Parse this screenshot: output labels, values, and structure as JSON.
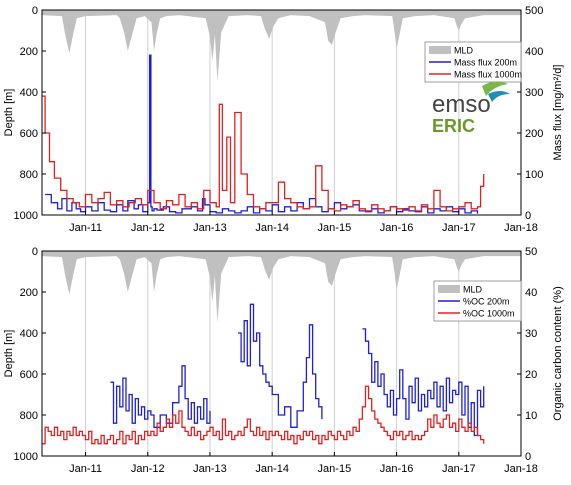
{
  "colors": {
    "mld": "#c0c0c0",
    "blue": "#1f1fdc",
    "red": "#e32020",
    "grid": "#cfcfcf",
    "axis": "#000000"
  },
  "chart_data": [
    {
      "type": "line",
      "ylabel_left": "Depth [m]",
      "ylabel_right": "Mass flux [mg/m²/d]",
      "ylim_left": [
        0,
        1000
      ],
      "ylim_left_reversed": true,
      "ylim_right": [
        0,
        500
      ],
      "yticks_left": [
        "0",
        "200",
        "400",
        "600",
        "800",
        "1000"
      ],
      "yticks_right": [
        "0",
        "100",
        "200",
        "300",
        "400",
        "500"
      ],
      "xlim": [
        2010.3,
        2018.0
      ],
      "xticks": [
        "Jan-11",
        "Jan-12",
        "Jan-13",
        "Jan-14",
        "Jan-15",
        "Jan-16",
        "Jan-17",
        "Jan-18"
      ],
      "legend": [
        "MLD",
        "Mass flux 200m",
        "Mass flux 1000m"
      ],
      "legend_position": "upper-right",
      "series": [
        {
          "name": "MLD",
          "axis": "left",
          "style": "filled-area",
          "x": [
            2010.3,
            2010.62,
            2010.68,
            2010.74,
            2010.8,
            2010.86,
            2011.0,
            2011.5,
            2011.55,
            2011.62,
            2011.68,
            2011.74,
            2011.82,
            2011.95,
            2012.06,
            2012.1,
            2012.14,
            2012.2,
            2012.3,
            2012.5,
            2012.93,
            2013.0,
            2013.04,
            2013.08,
            2013.12,
            2013.18,
            2013.3,
            2013.6,
            2013.82,
            2013.88,
            2013.95,
            2014.02,
            2014.1,
            2014.3,
            2014.6,
            2014.85,
            2014.9,
            2014.96,
            2015.02,
            2015.1,
            2015.3,
            2015.5,
            2015.93,
            2015.97,
            2016.0,
            2016.04,
            2016.1,
            2016.3,
            2016.6,
            2016.93,
            2016.97,
            2017.0,
            2017.04,
            2017.1,
            2017.4,
            2018.0
          ],
          "y": [
            25,
            30,
            130,
            210,
            120,
            40,
            30,
            25,
            40,
            110,
            200,
            130,
            40,
            30,
            60,
            200,
            120,
            40,
            30,
            25,
            40,
            130,
            250,
            120,
            350,
            110,
            30,
            25,
            30,
            90,
            140,
            80,
            40,
            25,
            30,
            60,
            150,
            170,
            110,
            40,
            30,
            25,
            30,
            110,
            190,
            130,
            40,
            30,
            25,
            40,
            80,
            100,
            70,
            40,
            25,
            25
          ]
        },
        {
          "name": "Mass flux 200m",
          "axis": "right",
          "color": "#1f1fdc",
          "x": [
            2010.35,
            2010.45,
            2010.55,
            2010.62,
            2010.7,
            2010.78,
            2010.85,
            2010.92,
            2011.0,
            2011.1,
            2011.2,
            2011.3,
            2011.4,
            2011.5,
            2011.6,
            2011.68,
            2011.78,
            2011.85,
            2011.92,
            2012.0,
            2012.03,
            2012.05,
            2012.07,
            2012.1,
            2012.15,
            2012.25,
            2012.35,
            2012.45,
            2012.55,
            2012.7,
            2012.8,
            2012.88,
            2012.92,
            2013.0,
            2013.1,
            2013.2,
            2013.3,
            2013.4,
            2013.5,
            2013.6,
            2013.7,
            2013.8,
            2013.9,
            2014.0,
            2014.1,
            2014.2,
            2014.3,
            2014.4,
            2014.5,
            2014.6,
            2014.7,
            2014.8,
            2014.9,
            2015.0,
            2015.1,
            2015.2,
            2015.3,
            2015.4,
            2015.5,
            2015.6,
            2015.7,
            2015.8,
            2015.9,
            2016.0,
            2016.1,
            2016.2,
            2016.3,
            2016.4,
            2016.5,
            2016.6,
            2016.7,
            2016.8,
            2016.9,
            2017.0,
            2017.1,
            2017.2,
            2017.3
          ],
          "y": [
            50,
            30,
            15,
            40,
            10,
            30,
            15,
            8,
            20,
            10,
            30,
            12,
            8,
            25,
            10,
            35,
            15,
            25,
            8,
            30,
            390,
            20,
            10,
            15,
            12,
            20,
            8,
            5,
            15,
            20,
            10,
            40,
            25,
            8,
            5,
            15,
            10,
            5,
            10,
            20,
            5,
            15,
            10,
            25,
            8,
            20,
            10,
            30,
            15,
            40,
            20,
            8,
            15,
            30,
            15,
            20,
            25,
            10,
            8,
            15,
            5,
            10,
            20,
            8,
            15,
            10,
            8,
            20,
            5,
            15,
            10,
            20,
            8,
            15,
            5,
            10,
            3
          ]
        },
        {
          "name": "Mass flux 1000m",
          "axis": "right",
          "color": "#e32020",
          "x": [
            2010.3,
            2010.35,
            2010.42,
            2010.5,
            2010.6,
            2010.7,
            2010.8,
            2010.9,
            2011.0,
            2011.1,
            2011.2,
            2011.3,
            2011.4,
            2011.5,
            2011.6,
            2011.7,
            2011.8,
            2011.9,
            2012.0,
            2012.1,
            2012.2,
            2012.3,
            2012.4,
            2012.5,
            2012.6,
            2012.7,
            2012.8,
            2012.9,
            2013.0,
            2013.1,
            2013.15,
            2013.2,
            2013.27,
            2013.33,
            2013.4,
            2013.5,
            2013.6,
            2013.7,
            2013.8,
            2013.9,
            2014.0,
            2014.1,
            2014.2,
            2014.3,
            2014.4,
            2014.5,
            2014.6,
            2014.7,
            2014.8,
            2014.9,
            2015.0,
            2015.1,
            2015.2,
            2015.3,
            2015.4,
            2015.5,
            2015.6,
            2015.7,
            2015.8,
            2015.9,
            2016.0,
            2016.1,
            2016.2,
            2016.3,
            2016.4,
            2016.5,
            2016.6,
            2016.7,
            2016.8,
            2016.9,
            2017.0,
            2017.1,
            2017.2,
            2017.3,
            2017.35,
            2017.4
          ],
          "y": [
            290,
            200,
            130,
            90,
            60,
            40,
            30,
            20,
            50,
            30,
            40,
            55,
            25,
            35,
            20,
            30,
            40,
            25,
            60,
            30,
            15,
            35,
            25,
            50,
            20,
            30,
            15,
            60,
            30,
            20,
            270,
            60,
            190,
            30,
            250,
            100,
            50,
            20,
            15,
            30,
            30,
            80,
            40,
            30,
            20,
            15,
            20,
            120,
            60,
            15,
            10,
            25,
            20,
            35,
            15,
            10,
            25,
            15,
            10,
            20,
            15,
            12,
            20,
            10,
            25,
            15,
            60,
            20,
            10,
            15,
            20,
            30,
            15,
            20,
            70,
            100
          ]
        }
      ]
    },
    {
      "type": "line",
      "ylabel_left": "Depth [m]",
      "ylabel_right": "Organic carbon content (%)",
      "ylim_left": [
        0,
        1000
      ],
      "ylim_left_reversed": true,
      "ylim_right": [
        0,
        50
      ],
      "yticks_left": [
        "0",
        "200",
        "400",
        "600",
        "800",
        "1000"
      ],
      "yticks_right": [
        "0",
        "10",
        "20",
        "30",
        "40",
        "50"
      ],
      "xlim": [
        2010.3,
        2018.0
      ],
      "xticks": [
        "Jan-11",
        "Jan-12",
        "Jan-13",
        "Jan-14",
        "Jan-15",
        "Jan-16",
        "Jan-17",
        "Jan-18"
      ],
      "legend": [
        "MLD",
        "%OC 200m",
        "%OC 1000m"
      ],
      "legend_position": "upper-right",
      "series": [
        {
          "name": "%OC 200m",
          "axis": "right",
          "color": "#1f1fdc",
          "segments": [
            {
              "x": [
                2011.4,
                2011.45,
                2011.5,
                2011.55,
                2011.6,
                2011.65,
                2011.7,
                2011.75,
                2011.8,
                2011.85,
                2011.9,
                2011.95,
                2012.0,
                2012.05,
                2012.1,
                2012.2,
                2012.3,
                2012.4,
                2012.5,
                2012.55,
                2012.6,
                2012.65,
                2012.7,
                2012.75,
                2012.8,
                2012.85,
                2012.9,
                2012.95,
                2013.0
              ],
              "y": [
                18,
                8,
                17,
                12,
                19,
                11,
                15,
                8,
                14,
                10,
                12,
                9,
                11,
                10,
                7,
                10,
                8,
                13,
                17,
                22,
                14,
                9,
                13,
                8,
                12,
                9,
                14,
                8,
                11
              ]
            },
            {
              "x": [
                2013.45,
                2013.5,
                2013.55,
                2013.6,
                2013.65,
                2013.7,
                2013.75,
                2013.8,
                2013.85,
                2013.9,
                2013.95,
                2014.0,
                2014.1,
                2014.2,
                2014.3,
                2014.4,
                2014.5,
                2014.55,
                2014.6,
                2014.65,
                2014.7,
                2014.75,
                2014.8
              ],
              "y": [
                30,
                23,
                33,
                22,
                37,
                28,
                30,
                22,
                20,
                18,
                17,
                15,
                10,
                12,
                7,
                11,
                18,
                24,
                32,
                20,
                14,
                12,
                9
              ]
            },
            {
              "x": [
                2015.45,
                2015.5,
                2015.55,
                2015.6,
                2015.65,
                2015.7,
                2015.75,
                2015.8,
                2015.85,
                2015.9,
                2015.95,
                2016.0,
                2016.05,
                2016.1,
                2016.15,
                2016.2,
                2016.25,
                2016.3,
                2016.35,
                2016.4,
                2016.45,
                2016.5,
                2016.55,
                2016.6,
                2016.65,
                2016.7,
                2016.75,
                2016.8,
                2016.85,
                2016.9,
                2016.95,
                2017.0,
                2017.05,
                2017.1,
                2017.15,
                2017.2,
                2017.25,
                2017.3,
                2017.35,
                2017.4
              ],
              "y": [
                31,
                28,
                25,
                18,
                23,
                17,
                20,
                15,
                12,
                16,
                10,
                14,
                21,
                14,
                9,
                17,
                13,
                19,
                11,
                15,
                12,
                16,
                14,
                18,
                12,
                17,
                11,
                19,
                13,
                16,
                15,
                18,
                10,
                17,
                7,
                13,
                5,
                16,
                12,
                17
              ]
            }
          ]
        },
        {
          "name": "%OC 1000m",
          "axis": "right",
          "color": "#e32020",
          "x": [
            2010.3,
            2010.35,
            2010.4,
            2010.45,
            2010.5,
            2010.55,
            2010.6,
            2010.65,
            2010.7,
            2010.75,
            2010.8,
            2010.85,
            2010.9,
            2010.95,
            2011.0,
            2011.05,
            2011.1,
            2011.15,
            2011.2,
            2011.25,
            2011.3,
            2011.35,
            2011.4,
            2011.45,
            2011.5,
            2011.55,
            2011.6,
            2011.65,
            2011.7,
            2011.75,
            2011.8,
            2011.85,
            2011.9,
            2011.95,
            2012.0,
            2012.05,
            2012.1,
            2012.15,
            2012.2,
            2012.25,
            2012.3,
            2012.35,
            2012.4,
            2012.45,
            2012.5,
            2012.55,
            2012.6,
            2012.65,
            2012.7,
            2012.75,
            2012.8,
            2012.85,
            2012.9,
            2012.95,
            2013.0,
            2013.05,
            2013.1,
            2013.15,
            2013.2,
            2013.25,
            2013.3,
            2013.35,
            2013.4,
            2013.45,
            2013.5,
            2013.55,
            2013.6,
            2013.65,
            2013.7,
            2013.75,
            2013.8,
            2013.85,
            2013.9,
            2013.95,
            2014.0,
            2014.05,
            2014.1,
            2014.15,
            2014.2,
            2014.25,
            2014.3,
            2014.35,
            2014.4,
            2014.45,
            2014.5,
            2014.55,
            2014.6,
            2014.65,
            2014.7,
            2014.75,
            2014.8,
            2014.85,
            2014.9,
            2014.95,
            2015.0,
            2015.05,
            2015.1,
            2015.15,
            2015.2,
            2015.25,
            2015.3,
            2015.35,
            2015.4,
            2015.45,
            2015.5,
            2015.55,
            2015.6,
            2015.65,
            2015.7,
            2015.75,
            2015.8,
            2015.85,
            2015.9,
            2015.95,
            2016.0,
            2016.05,
            2016.1,
            2016.15,
            2016.2,
            2016.25,
            2016.3,
            2016.35,
            2016.4,
            2016.45,
            2016.5,
            2016.55,
            2016.6,
            2016.65,
            2016.7,
            2016.75,
            2016.8,
            2016.85,
            2016.9,
            2016.95,
            2017.0,
            2017.05,
            2017.1,
            2017.15,
            2017.2,
            2017.25,
            2017.3,
            2017.35,
            2017.4
          ],
          "y": [
            3,
            7,
            6,
            5,
            7,
            5,
            6,
            4,
            6,
            5,
            7,
            5,
            6,
            5,
            4,
            6,
            3,
            4,
            3,
            5,
            3,
            4,
            5,
            3,
            4,
            6,
            3,
            5,
            4,
            6,
            3,
            5,
            4,
            6,
            5,
            6,
            5,
            8,
            6,
            7,
            9,
            7,
            10,
            8,
            11,
            7,
            6,
            5,
            7,
            5,
            6,
            4,
            5,
            6,
            7,
            5,
            6,
            4,
            9,
            5,
            6,
            4,
            5,
            6,
            5,
            7,
            9,
            6,
            5,
            7,
            5,
            6,
            4,
            6,
            5,
            6,
            5,
            4,
            6,
            4,
            5,
            3,
            5,
            4,
            6,
            5,
            6,
            4,
            5,
            3,
            5,
            4,
            6,
            5,
            4,
            6,
            5,
            4,
            6,
            5,
            7,
            6,
            9,
            12,
            17,
            14,
            11,
            9,
            8,
            7,
            6,
            5,
            4,
            6,
            5,
            6,
            4,
            5,
            6,
            4,
            5,
            4,
            5,
            6,
            9,
            7,
            10,
            8,
            7,
            9,
            10,
            7,
            8,
            6,
            9,
            7,
            6,
            8,
            6,
            7,
            5,
            4,
            3
          ]
        }
      ]
    }
  ]
}
